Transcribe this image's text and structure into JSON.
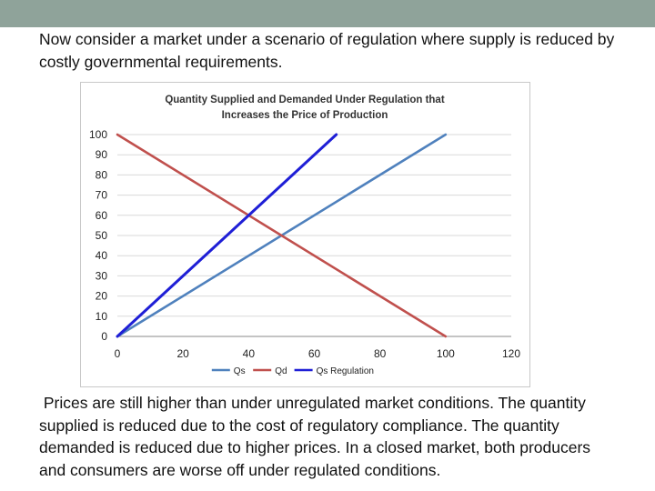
{
  "slide": {
    "intro_text": "Now consider a market under a scenario of regulation where supply is reduced by costly governmental requirements.",
    "body_text": " Prices are still higher than under unregulated market conditions. The quantity supplied is reduced due to the cost of regulatory compliance. The quantity demanded is reduced due to higher prices. In a closed market, both producers and consumers are worse off under regulated conditions."
  },
  "chart_data": {
    "type": "line",
    "title_line1": "Quantity Supplied and Demanded Under Regulation that",
    "title_line2": "Increases the Price of Production",
    "xlabel": "",
    "ylabel": "",
    "xlim": [
      0,
      120
    ],
    "ylim": [
      0,
      100
    ],
    "x_ticks": [
      0,
      20,
      40,
      60,
      80,
      100,
      120
    ],
    "y_ticks": [
      0,
      10,
      20,
      30,
      40,
      50,
      60,
      70,
      80,
      90,
      100
    ],
    "grid": true,
    "legend_position": "bottom",
    "series": [
      {
        "name": "Qs",
        "color": "#4f81bd",
        "x": [
          0,
          100
        ],
        "y": [
          0,
          100
        ]
      },
      {
        "name": "Qd",
        "color": "#c0504d",
        "x": [
          0,
          100
        ],
        "y": [
          100,
          0
        ]
      },
      {
        "name": "Qs Regulation",
        "color": "#1f1fd6",
        "x": [
          0,
          66.7
        ],
        "y": [
          0,
          100
        ]
      }
    ]
  }
}
